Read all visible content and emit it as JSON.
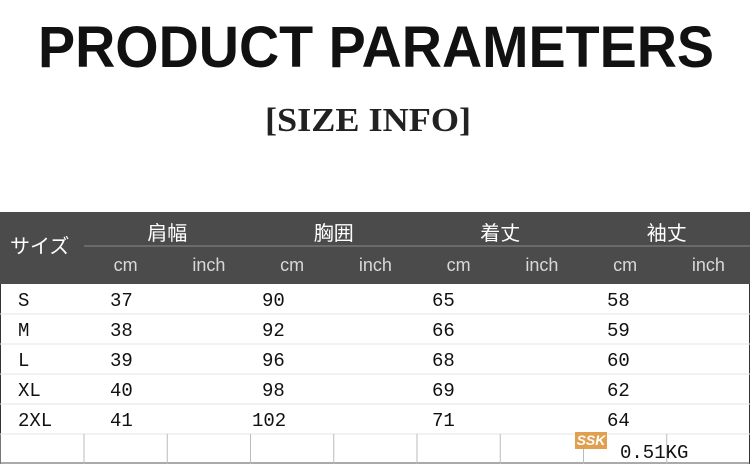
{
  "header": {
    "title": "PRODUCT PARAMETERS",
    "subtitle": "[SIZE INFO]"
  },
  "table": {
    "size_label": "サイズ",
    "measures": [
      "肩幅",
      "胸囲",
      "着丈",
      "袖丈"
    ],
    "units": [
      "cm",
      "inch"
    ],
    "rows": [
      [
        "S",
        37,
        90,
        65,
        58
      ],
      [
        "M",
        38,
        92,
        66,
        59
      ],
      [
        "L",
        39,
        96,
        68,
        60
      ],
      [
        "XL",
        40,
        98,
        69,
        62
      ],
      [
        "2XL",
        41,
        102,
        71,
        64
      ]
    ]
  },
  "footer": {
    "logo": "SSK",
    "weight": "0.51KG"
  }
}
